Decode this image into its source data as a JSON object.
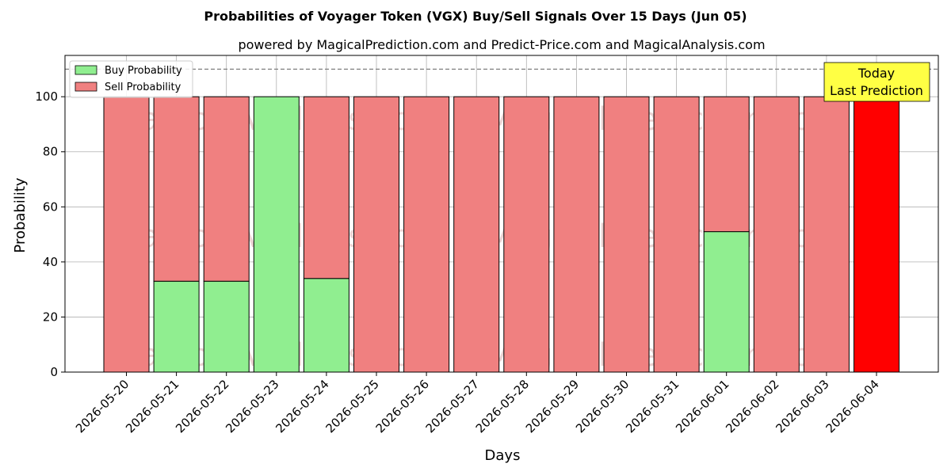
{
  "chart_data": {
    "type": "bar",
    "stacked": true,
    "title": "Probabilities of Voyager Token (VGX) Buy/Sell Signals Over 15 Days (Jun 05)",
    "subtitle": "powered by MagicalPrediction.com and Predict-Price.com and MagicalAnalysis.com",
    "xlabel": "Days",
    "ylabel": "Probability",
    "ylim": [
      0,
      115
    ],
    "yticks": [
      0,
      20,
      40,
      60,
      80,
      100
    ],
    "reference_line": 110,
    "grid": true,
    "legend_position": "top-left",
    "categories": [
      "2026-05-20",
      "2026-05-21",
      "2026-05-22",
      "2026-05-23",
      "2026-05-24",
      "2026-05-25",
      "2026-05-26",
      "2026-05-27",
      "2026-05-28",
      "2026-05-29",
      "2026-05-30",
      "2026-05-31",
      "2026-06-01",
      "2026-06-02",
      "2026-06-03",
      "2026-06-04"
    ],
    "series": [
      {
        "name": "Buy Probability",
        "color": "#90ee90",
        "values": [
          0,
          33,
          33,
          100,
          34,
          0,
          0,
          0,
          0,
          0,
          0,
          0,
          51,
          0,
          0,
          0
        ]
      },
      {
        "name": "Sell Probability",
        "color": "#f08080",
        "values": [
          100,
          67,
          67,
          0,
          66,
          100,
          100,
          100,
          100,
          100,
          100,
          100,
          49,
          100,
          100,
          100
        ]
      }
    ],
    "highlight": {
      "index": 15,
      "color": "#ff0000"
    },
    "annotation": {
      "line1": "Today",
      "line2": "Last Prediction",
      "background": "#ffff44"
    },
    "watermarks": [
      "MagicalAnalysis.com",
      "MagicalPrediction.com"
    ]
  }
}
